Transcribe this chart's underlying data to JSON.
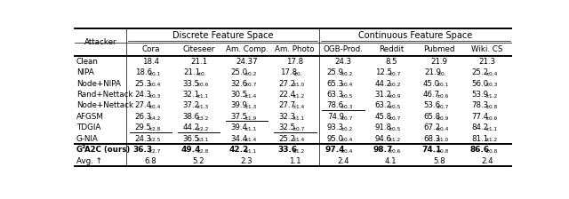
{
  "col_groups": [
    {
      "label": "Discrete Feature Space",
      "span": [
        0,
        3
      ]
    },
    {
      "label": "Continuous Feature Space",
      "span": [
        4,
        7
      ]
    }
  ],
  "all_cols": [
    "Cora",
    "Citeseer",
    "Am. Comp.",
    "Am. Photo",
    "OGB-Prod.",
    "Reddit",
    "Pubmed",
    "Wiki. CS"
  ],
  "rows": [
    {
      "name": "Clean",
      "vals": [
        "18.4",
        "21.1",
        "24.37",
        "17.8",
        "24.3",
        "8.5",
        "21.9",
        "21.3"
      ],
      "subs": [
        "",
        "",
        "",
        "",
        "",
        "",
        "",
        ""
      ],
      "bold": false,
      "underline": [
        false,
        false,
        false,
        false,
        false,
        false,
        false,
        false
      ],
      "g2": false
    },
    {
      "name": "NIPA",
      "vals": [
        "18.6",
        "21.1",
        "25.0",
        "17.8",
        "25.9",
        "12.5",
        "21.9",
        "25.2"
      ],
      "subs": [
        "±0.1",
        "±0.",
        "±0.2",
        "±0.",
        "±0.2",
        "±0.7",
        "±0.",
        "±0.4"
      ],
      "bold": false,
      "underline": [
        false,
        false,
        false,
        false,
        false,
        false,
        false,
        false
      ],
      "g2": false
    },
    {
      "name": "Node+NIPA",
      "vals": [
        "25.3",
        "33.5",
        "32.6",
        "27.2",
        "65.3",
        "44.2",
        "45.0",
        "56.0"
      ],
      "subs": [
        "±0.4",
        "±0.6",
        "±0.7",
        "±1.0",
        "±0.4",
        "±0.2",
        "±0.1",
        "±0.3"
      ],
      "bold": false,
      "underline": [
        false,
        false,
        false,
        false,
        false,
        false,
        false,
        false
      ],
      "g2": false
    },
    {
      "name": "Rand+Nettack",
      "vals": [
        "24.3",
        "32.1",
        "30.5",
        "22.4",
        "63.3",
        "31.2",
        "46.7",
        "53.9"
      ],
      "subs": [
        "±0.3",
        "±1.1",
        "±1.4",
        "±1.2",
        "±0.5",
        "±0.9",
        "±0.6",
        "±1.2"
      ],
      "bold": false,
      "underline": [
        false,
        false,
        false,
        false,
        false,
        false,
        false,
        false
      ],
      "g2": false
    },
    {
      "name": "Node+Nettack",
      "vals": [
        "27.4",
        "37.2",
        "39.9",
        "27.7",
        "78.6",
        "63.2",
        "53.6",
        "78.3"
      ],
      "subs": [
        "±0.4",
        "±1.3",
        "±1.3",
        "±1.4",
        "±0.3",
        "±0.5",
        "±0.7",
        "±0.8"
      ],
      "bold": false,
      "underline": [
        false,
        false,
        false,
        false,
        true,
        false,
        false,
        false
      ],
      "g2": false
    },
    {
      "name": "AFGSM",
      "vals": [
        "26.3",
        "38.6",
        "37.5",
        "32.3",
        "74.9",
        "45.8",
        "65.8",
        "77.4"
      ],
      "subs": [
        "±4.2",
        "±3.2",
        "±1.9",
        "±1.1",
        "±0.7",
        "±0.7",
        "±0.9",
        "±0.6"
      ],
      "bold": false,
      "underline": [
        false,
        false,
        true,
        false,
        false,
        false,
        false,
        false
      ],
      "g2": false
    },
    {
      "name": "TDGIA",
      "vals": [
        "29.5",
        "44.2",
        "39.4",
        "32.5",
        "93.3",
        "91.8",
        "67.2",
        "84.2"
      ],
      "subs": [
        "±2.8",
        "±2.2",
        "±1.1",
        "±0.7",
        "±0.2",
        "±0.5",
        "±0.4",
        "±1.1"
      ],
      "bold": false,
      "underline": [
        true,
        true,
        false,
        true,
        false,
        false,
        false,
        false
      ],
      "g2": false
    },
    {
      "name": "G-NIA",
      "vals": [
        "24.3",
        "36.5",
        "34.4",
        "25.2",
        "95.0",
        "94.6",
        "68.3",
        "81.1"
      ],
      "subs": [
        "±2.5",
        "±3.1",
        "±1.4",
        "±1.4",
        "±0.4",
        "±1.2",
        "±1.0",
        "±1.2"
      ],
      "bold": false,
      "underline": [
        true,
        true,
        false,
        true,
        true,
        true,
        true,
        true
      ],
      "g2": false
    },
    {
      "name": "G2A2C (ours)",
      "vals": [
        "36.3",
        "49.4",
        "42.2",
        "33.6",
        "97.4",
        "98.7",
        "74.1",
        "86.6"
      ],
      "subs": [
        "±2.7",
        "±2.8",
        "±1.1",
        "±1.2",
        "±0.4",
        "±0.6",
        "±0.8",
        "±0.8"
      ],
      "bold": true,
      "underline": [
        false,
        false,
        false,
        false,
        false,
        false,
        false,
        false
      ],
      "g2": true
    },
    {
      "name": "Avg. ↑",
      "vals": [
        "6.8",
        "5.2",
        "2.3",
        "1.1",
        "2.4",
        "4.1",
        "5.8",
        "2.4"
      ],
      "subs": [
        "",
        "",
        "",
        "",
        "",
        "",
        "",
        ""
      ],
      "bold": false,
      "underline": [
        false,
        false,
        false,
        false,
        false,
        false,
        false,
        false
      ],
      "g2": false
    }
  ],
  "bg_color": "#ffffff",
  "figsize": [
    6.4,
    2.24
  ],
  "dpi": 100
}
